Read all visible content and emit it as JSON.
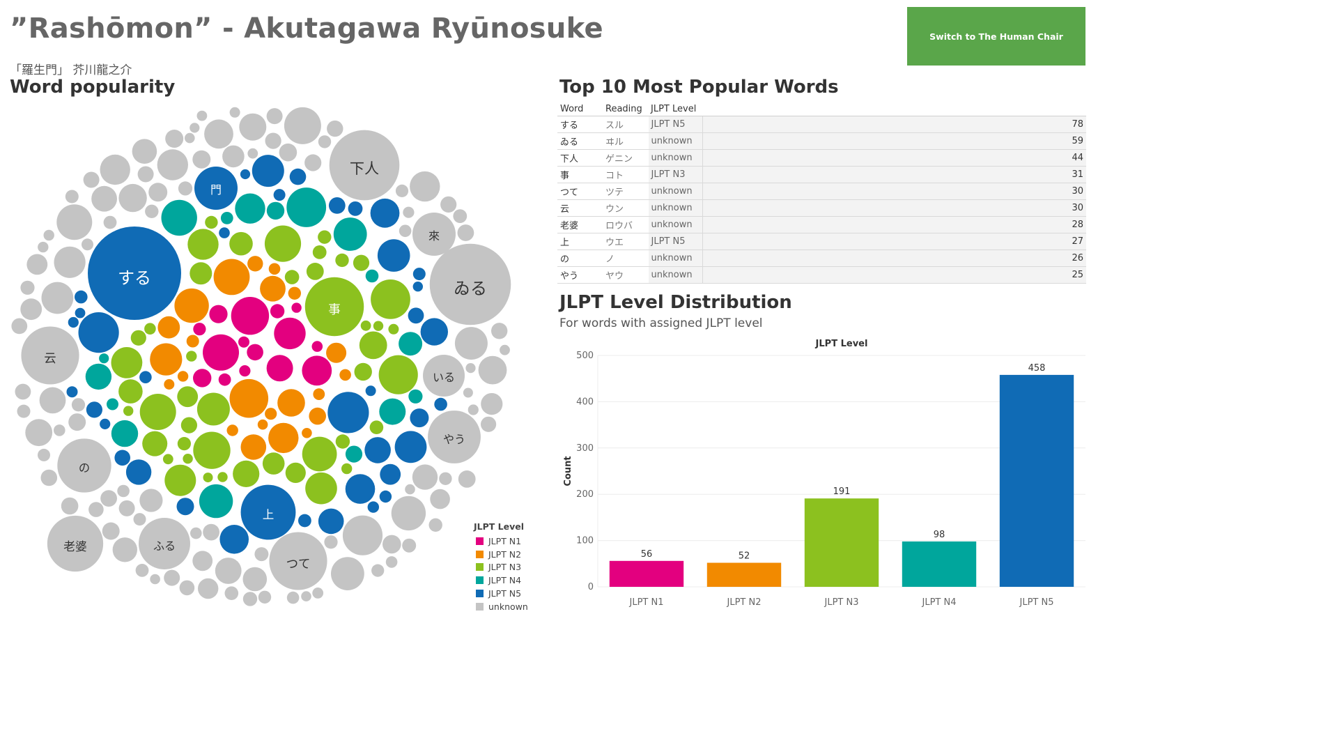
{
  "header": {
    "title": "”Rashōmon” - Akutagawa Ryūnosuke",
    "subtitle": "「羅生門」 芥川龍之介",
    "switch_label": "Switch to The Human Chair"
  },
  "bubble": {
    "title": "Word popularity",
    "labeled_words": [
      {
        "word": "する",
        "level": "JLPT N5",
        "count": 78
      },
      {
        "word": "ゐる",
        "level": "unknown",
        "count": 59
      },
      {
        "word": "下人",
        "level": "unknown",
        "count": 44
      },
      {
        "word": "事",
        "level": "JLPT N3",
        "count": 31
      },
      {
        "word": "つて",
        "level": "unknown",
        "count": 30
      },
      {
        "word": "云",
        "level": "unknown",
        "count": 30
      },
      {
        "word": "老婆",
        "level": "unknown",
        "count": 28
      },
      {
        "word": "上",
        "level": "JLPT N5",
        "count": 27
      },
      {
        "word": "の",
        "level": "unknown",
        "count": 26
      },
      {
        "word": "やう",
        "level": "unknown",
        "count": 25
      },
      {
        "word": "來",
        "level": "unknown"
      },
      {
        "word": "いる",
        "level": "unknown"
      },
      {
        "word": "ふる",
        "level": "unknown"
      },
      {
        "word": "門",
        "level": "JLPT N5"
      }
    ]
  },
  "legend": {
    "title": "JLPT Level",
    "items": [
      {
        "label": "JLPT N1",
        "color": "#e3007f"
      },
      {
        "label": "JLPT N2",
        "color": "#f28a00"
      },
      {
        "label": "JLPT N3",
        "color": "#8cc11f"
      },
      {
        "label": "JLPT N4",
        "color": "#00a69c"
      },
      {
        "label": "JLPT N5",
        "color": "#106bb5"
      },
      {
        "label": "unknown",
        "color": "#c4c4c4"
      }
    ]
  },
  "top10": {
    "title": "Top 10 Most Popular Words",
    "columns": [
      "Word",
      "Reading",
      "JLPT Level"
    ],
    "rows": [
      {
        "word": "する",
        "reading": "スル",
        "level": "JLPT N5",
        "count": 78
      },
      {
        "word": "ゐる",
        "reading": "ヰル",
        "level": "unknown",
        "count": 59
      },
      {
        "word": "下人",
        "reading": "ゲニン",
        "level": "unknown",
        "count": 44
      },
      {
        "word": "事",
        "reading": "コト",
        "level": "JLPT N3",
        "count": 31
      },
      {
        "word": "つて",
        "reading": "ツテ",
        "level": "unknown",
        "count": 30
      },
      {
        "word": "云",
        "reading": "ウン",
        "level": "unknown",
        "count": 30
      },
      {
        "word": "老婆",
        "reading": "ロウバ",
        "level": "unknown",
        "count": 28
      },
      {
        "word": "上",
        "reading": "ウエ",
        "level": "JLPT N5",
        "count": 27
      },
      {
        "word": "の",
        "reading": "ノ",
        "level": "unknown",
        "count": 26
      },
      {
        "word": "やう",
        "reading": "ヤウ",
        "level": "unknown",
        "count": 25
      }
    ]
  },
  "distribution": {
    "title": "JLPT Level Distribution",
    "subtitle": "For words with assigned JLPT level"
  },
  "chart_data": {
    "type": "bar",
    "title": "JLPT Level",
    "xlabel": "",
    "ylabel": "Count",
    "categories": [
      "JLPT N1",
      "JLPT N2",
      "JLPT N3",
      "JLPT N4",
      "JLPT N5"
    ],
    "values": [
      56,
      52,
      191,
      98,
      458
    ],
    "colors": [
      "#e3007f",
      "#f28a00",
      "#8cc11f",
      "#00a69c",
      "#106bb5"
    ],
    "ylim": [
      0,
      500
    ],
    "yticks": [
      0,
      100,
      200,
      300,
      400,
      500
    ],
    "grid": true,
    "data_labels": true
  }
}
